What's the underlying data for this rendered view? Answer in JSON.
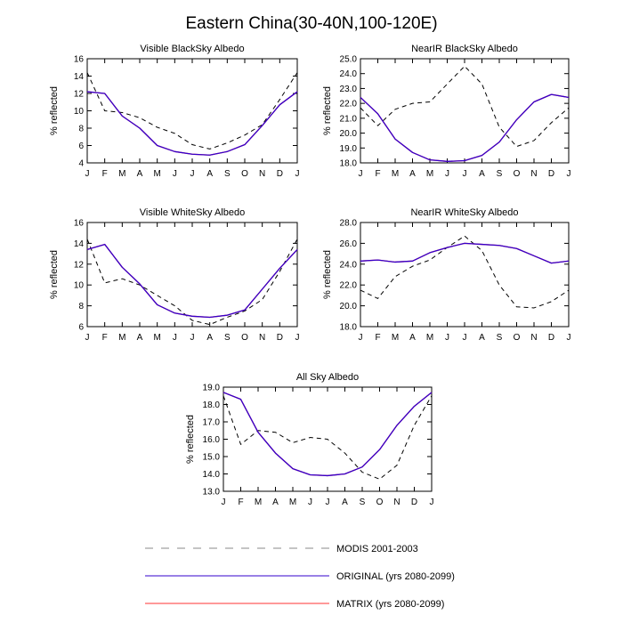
{
  "figure": {
    "title": "Eastern China(30-40N,100-120E)"
  },
  "legend": [
    {
      "label": "MODIS 2001-2003",
      "color": "#000000",
      "dash": true
    },
    {
      "label": "ORIGINAL (yrs 2080-2099)",
      "color": "#3300cc",
      "dash": false
    },
    {
      "label": "MATRIX (yrs 2080-2099)",
      "color": "#ff3333",
      "dash": false
    }
  ],
  "chart_data": [
    {
      "type": "line",
      "title": "Visible BlackSky Albedo",
      "ylabel": "% reflected",
      "categories": [
        "J",
        "F",
        "M",
        "A",
        "M",
        "J",
        "J",
        "A",
        "S",
        "O",
        "N",
        "D",
        "J"
      ],
      "ylim": [
        4,
        16
      ],
      "yticks": [
        "4",
        "6",
        "8",
        "10",
        "12",
        "14",
        "16"
      ],
      "series": [
        {
          "name": "MODIS 2001-2003",
          "values": [
            14.4,
            10.0,
            9.8,
            9.2,
            8.1,
            7.4,
            6.1,
            5.6,
            6.3,
            7.2,
            8.4,
            11.3,
            14.4
          ]
        },
        {
          "name": "ORIGINAL (yrs 2080-2099)",
          "values": [
            12.2,
            12.0,
            9.4,
            8.0,
            6.0,
            5.3,
            5.0,
            4.9,
            5.3,
            6.1,
            8.3,
            10.7,
            12.2
          ]
        },
        {
          "name": "MATRIX (yrs 2080-2099)",
          "values": [
            12.2,
            12.0,
            9.4,
            8.0,
            6.0,
            5.3,
            5.0,
            4.9,
            5.3,
            6.1,
            8.3,
            10.7,
            12.2
          ]
        }
      ]
    },
    {
      "type": "line",
      "title": "NearIR BlackSky Albedo",
      "ylabel": "% reflected",
      "categories": [
        "J",
        "F",
        "M",
        "A",
        "M",
        "J",
        "J",
        "A",
        "S",
        "O",
        "N",
        "D",
        "J"
      ],
      "ylim": [
        18,
        25
      ],
      "yticks": [
        "18.0",
        "19.0",
        "20.0",
        "21.0",
        "22.0",
        "23.0",
        "24.0",
        "25.0"
      ],
      "series": [
        {
          "name": "MODIS 2001-2003",
          "values": [
            21.7,
            20.5,
            21.6,
            22.0,
            22.1,
            23.3,
            24.5,
            23.3,
            20.4,
            19.1,
            19.5,
            20.7,
            21.7
          ]
        },
        {
          "name": "ORIGINAL (yrs 2080-2099)",
          "values": [
            22.4,
            21.3,
            19.6,
            18.7,
            18.2,
            18.1,
            18.15,
            18.5,
            19.4,
            20.9,
            22.1,
            22.6,
            22.4
          ]
        },
        {
          "name": "MATRIX (yrs 2080-2099)",
          "values": [
            22.4,
            21.3,
            19.6,
            18.7,
            18.2,
            18.1,
            18.15,
            18.5,
            19.4,
            20.9,
            22.1,
            22.6,
            22.4
          ]
        }
      ]
    },
    {
      "type": "line",
      "title": "Visible WhiteSky Albedo",
      "ylabel": "% reflected",
      "categories": [
        "J",
        "F",
        "M",
        "A",
        "M",
        "J",
        "J",
        "A",
        "S",
        "O",
        "N",
        "D",
        "J"
      ],
      "ylim": [
        6,
        16
      ],
      "yticks": [
        "6",
        "8",
        "10",
        "12",
        "14",
        "16"
      ],
      "series": [
        {
          "name": "MODIS 2001-2003",
          "values": [
            14.4,
            10.2,
            10.6,
            10.0,
            9.0,
            8.0,
            6.6,
            6.2,
            6.9,
            7.5,
            8.6,
            11.3,
            14.4
          ]
        },
        {
          "name": "ORIGINAL (yrs 2080-2099)",
          "values": [
            13.4,
            13.9,
            11.7,
            10.1,
            8.1,
            7.3,
            7.0,
            6.9,
            7.1,
            7.6,
            9.6,
            11.6,
            13.4
          ]
        },
        {
          "name": "MATRIX (yrs 2080-2099)",
          "values": [
            13.4,
            13.9,
            11.7,
            10.1,
            8.1,
            7.3,
            7.0,
            6.9,
            7.1,
            7.6,
            9.6,
            11.6,
            13.4
          ]
        }
      ]
    },
    {
      "type": "line",
      "title": "NearIR WhiteSky Albedo",
      "ylabel": "% reflected",
      "categories": [
        "J",
        "F",
        "M",
        "A",
        "M",
        "J",
        "J",
        "A",
        "S",
        "O",
        "N",
        "D",
        "J"
      ],
      "ylim": [
        18,
        28
      ],
      "yticks": [
        "18.0",
        "20.0",
        "22.0",
        "24.0",
        "26.0",
        "28.0"
      ],
      "series": [
        {
          "name": "MODIS 2001-2003",
          "values": [
            21.5,
            20.7,
            22.8,
            23.8,
            24.4,
            25.6,
            26.7,
            25.3,
            22.0,
            19.9,
            19.8,
            20.4,
            21.5
          ]
        },
        {
          "name": "ORIGINAL (yrs 2080-2099)",
          "values": [
            24.3,
            24.4,
            24.2,
            24.3,
            25.1,
            25.6,
            26.0,
            25.9,
            25.8,
            25.5,
            24.8,
            24.1,
            24.3
          ]
        },
        {
          "name": "MATRIX (yrs 2080-2099)",
          "values": [
            24.3,
            24.4,
            24.2,
            24.3,
            25.1,
            25.6,
            26.0,
            25.9,
            25.8,
            25.5,
            24.8,
            24.1,
            24.3
          ]
        }
      ]
    },
    {
      "type": "line",
      "title": "All Sky Albedo",
      "ylabel": "% reflected",
      "categories": [
        "J",
        "F",
        "M",
        "A",
        "M",
        "J",
        "J",
        "A",
        "S",
        "O",
        "N",
        "D",
        "J"
      ],
      "ylim": [
        13,
        19
      ],
      "yticks": [
        "13.0",
        "14.0",
        "15.0",
        "16.0",
        "17.0",
        "18.0",
        "19.0"
      ],
      "series": [
        {
          "name": "MODIS 2001-2003",
          "values": [
            18.5,
            15.7,
            16.5,
            16.4,
            15.8,
            16.1,
            16.0,
            15.2,
            14.1,
            13.7,
            14.5,
            16.8,
            18.5
          ]
        },
        {
          "name": "ORIGINAL (yrs 2080-2099)",
          "values": [
            18.7,
            18.3,
            16.4,
            15.2,
            14.3,
            13.95,
            13.9,
            14.0,
            14.4,
            15.4,
            16.8,
            17.9,
            18.7
          ]
        },
        {
          "name": "MATRIX (yrs 2080-2099)",
          "values": [
            18.7,
            18.3,
            16.4,
            15.2,
            14.3,
            13.95,
            13.9,
            14.0,
            14.4,
            15.4,
            16.8,
            17.9,
            18.7
          ]
        }
      ]
    }
  ]
}
